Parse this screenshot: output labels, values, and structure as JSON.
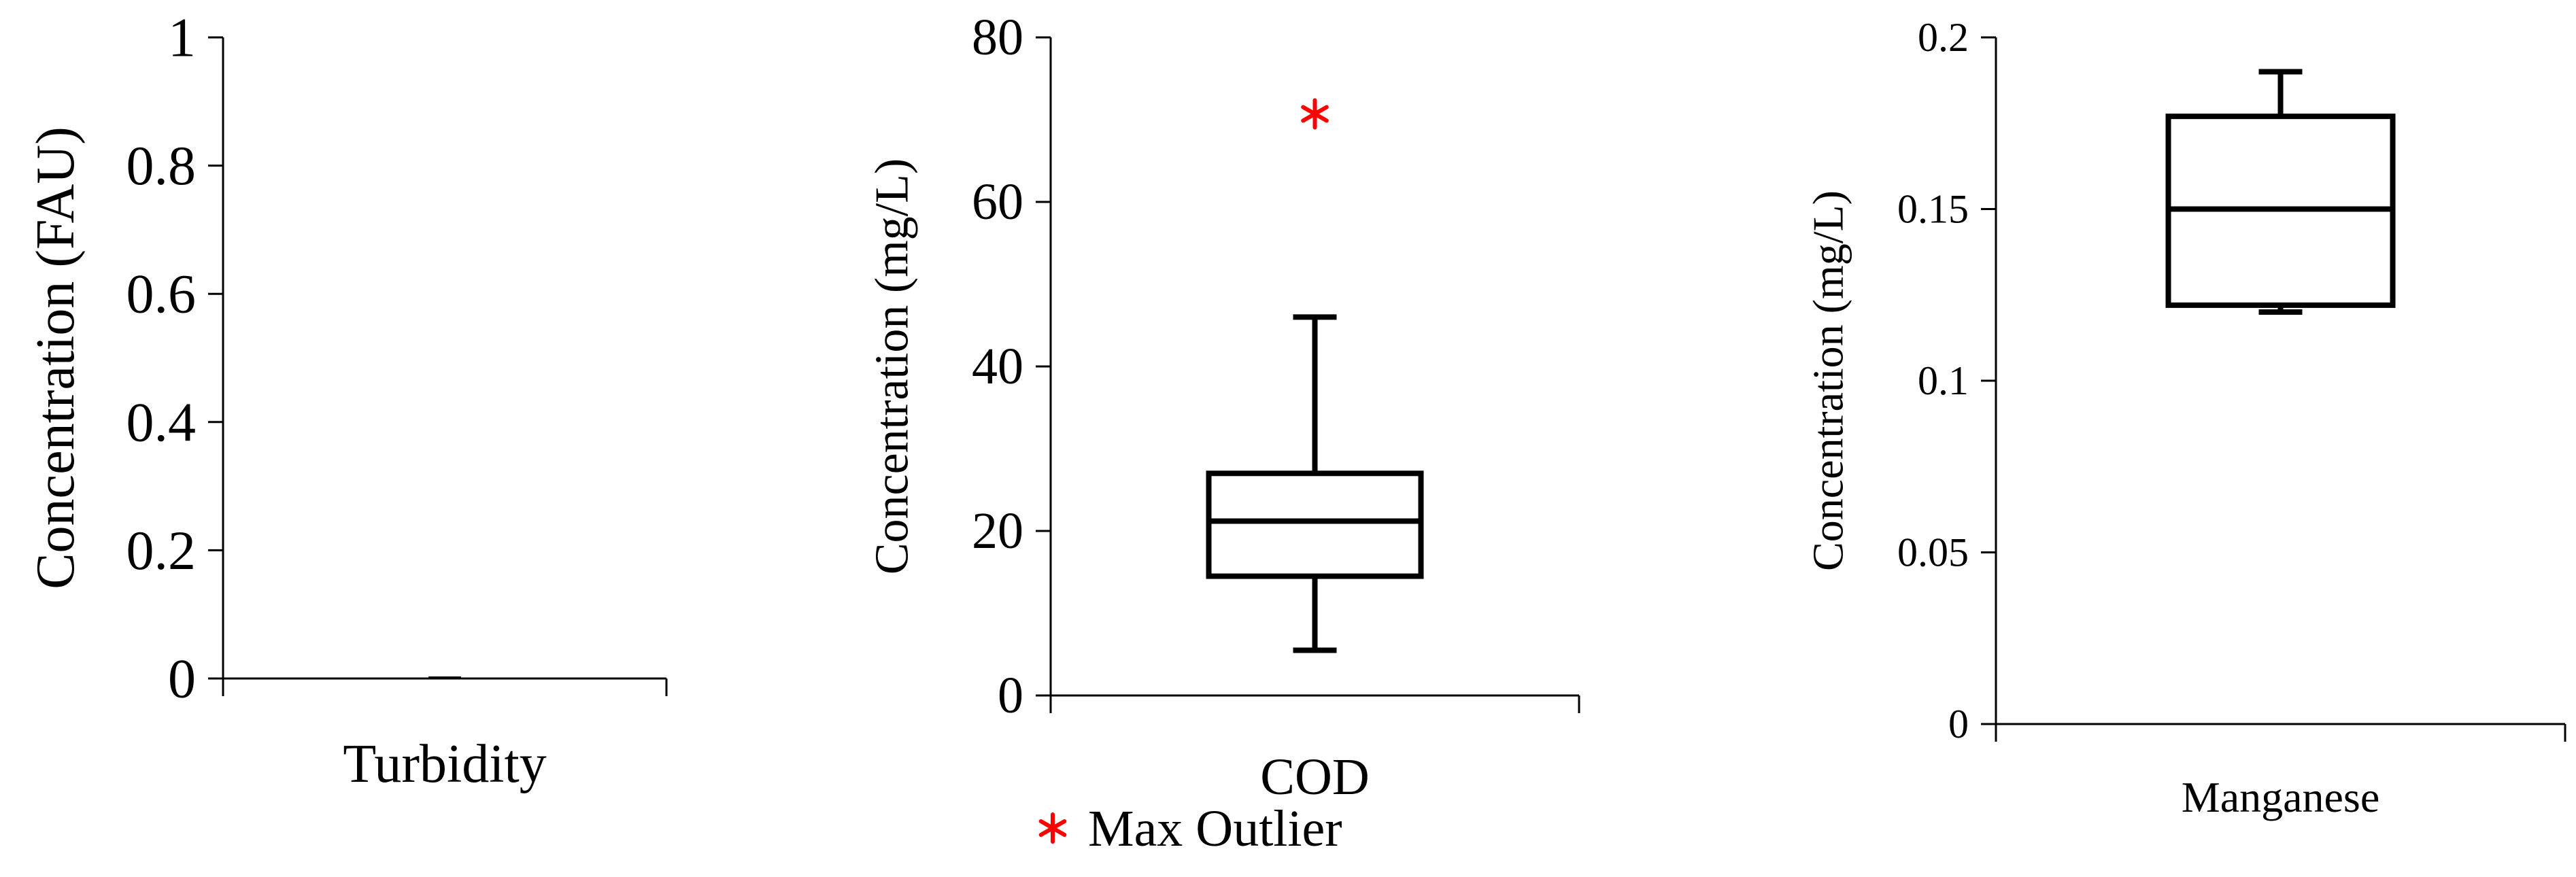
{
  "chart_data": [
    {
      "type": "box",
      "category": "Turbidity",
      "ylabel": "Concentration (FAU)",
      "ylim": [
        0,
        1
      ],
      "yticks": [
        "0",
        "0.2",
        "0.4",
        "0.6",
        "0.8",
        "1"
      ],
      "box": {
        "min": 0,
        "q1": 0,
        "median": 0,
        "q3": 0,
        "max": 0
      },
      "outliers": []
    },
    {
      "type": "box",
      "category": "COD",
      "ylabel": "Concentration (mg/L)",
      "ylim": [
        0,
        80
      ],
      "yticks": [
        "0",
        "20",
        "40",
        "60",
        "80"
      ],
      "box": {
        "min": 5.5,
        "q1": 14.5,
        "median": 21.2,
        "q3": 27.0,
        "max": 46.0
      },
      "outliers": [
        70.7
      ]
    },
    {
      "type": "box",
      "category": "Manganese",
      "ylabel": "Concentration (mg/L)",
      "ylim": [
        0,
        0.2
      ],
      "yticks": [
        "0",
        "0.05",
        "0.1",
        "0.15",
        "0.2"
      ],
      "box": {
        "min": 0.12,
        "q1": 0.122,
        "median": 0.15,
        "q3": 0.177,
        "max": 0.19
      },
      "outliers": []
    }
  ],
  "legend": {
    "label": "Max Outlier",
    "color": "#ff0000",
    "marker": "asterisk"
  },
  "colors": {
    "box": "#000000",
    "outlier": "#ff0000"
  }
}
